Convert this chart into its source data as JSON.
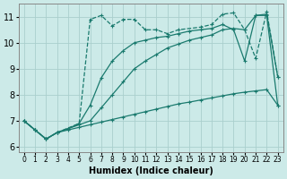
{
  "bg_color": "#cceae8",
  "grid_color": "#aacfcd",
  "line_color": "#1a7a6e",
  "xlabel": "Humidex (Indice chaleur)",
  "xlim": [
    -0.5,
    23.5
  ],
  "ylim": [
    5.8,
    11.5
  ],
  "yticks": [
    6,
    7,
    8,
    9,
    10,
    11
  ],
  "xticks": [
    0,
    1,
    2,
    3,
    4,
    5,
    6,
    7,
    8,
    9,
    10,
    11,
    12,
    13,
    14,
    15,
    16,
    17,
    18,
    19,
    20,
    21,
    22,
    23
  ],
  "series1_x": [
    0,
    1,
    2,
    3,
    4,
    5,
    6,
    7,
    8,
    9,
    10,
    11,
    12,
    13,
    14,
    15,
    16,
    17,
    18,
    19,
    20,
    21,
    22,
    23
  ],
  "series1_y": [
    7.0,
    6.65,
    6.3,
    6.55,
    6.65,
    6.75,
    6.85,
    6.95,
    7.05,
    7.15,
    7.25,
    7.35,
    7.45,
    7.55,
    7.65,
    7.72,
    7.8,
    7.88,
    7.96,
    8.04,
    8.1,
    8.15,
    8.2,
    7.6
  ],
  "series2_x": [
    0,
    1,
    2,
    3,
    4,
    5,
    6,
    7,
    8,
    9,
    10,
    11,
    12,
    13,
    14,
    15,
    16,
    17,
    18,
    19,
    20,
    21,
    22,
    23
  ],
  "series2_y": [
    7.0,
    6.65,
    6.3,
    6.55,
    6.7,
    6.85,
    7.0,
    7.5,
    8.0,
    8.5,
    9.0,
    9.3,
    9.55,
    9.8,
    9.95,
    10.1,
    10.2,
    10.3,
    10.5,
    10.55,
    10.5,
    11.05,
    11.05,
    7.6
  ],
  "series3_x": [
    0,
    1,
    2,
    3,
    4,
    5,
    6,
    7,
    8,
    9,
    10,
    11,
    12,
    13,
    14,
    15,
    16,
    17,
    18,
    19,
    20,
    21,
    22,
    23
  ],
  "series3_y": [
    7.0,
    6.65,
    6.3,
    6.55,
    6.7,
    6.9,
    7.6,
    8.65,
    9.3,
    9.7,
    10.0,
    10.1,
    10.2,
    10.25,
    10.35,
    10.45,
    10.5,
    10.55,
    10.7,
    10.5,
    9.3,
    11.05,
    11.1,
    8.7
  ],
  "series4_x": [
    0,
    1,
    2,
    3,
    5,
    6,
    7,
    8,
    9,
    10,
    11,
    12,
    13,
    14,
    16,
    17,
    18,
    19,
    20,
    21,
    22,
    23
  ],
  "series4_y": [
    7.0,
    6.65,
    6.3,
    6.55,
    6.9,
    10.9,
    11.05,
    10.65,
    10.9,
    10.9,
    10.5,
    10.5,
    10.35,
    10.5,
    10.6,
    10.7,
    11.1,
    11.15,
    10.5,
    9.4,
    11.2,
    8.7
  ],
  "series4_style": "--"
}
